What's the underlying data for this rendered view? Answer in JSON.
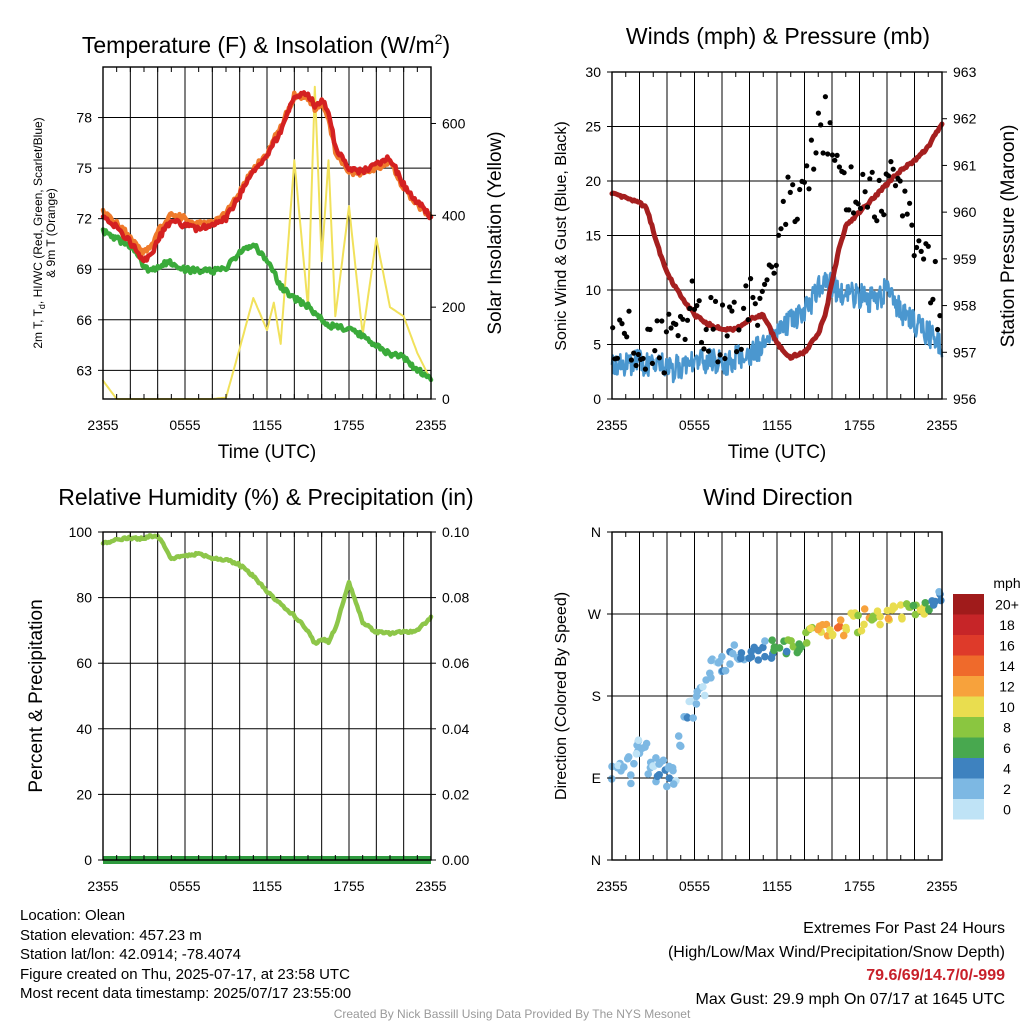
{
  "chart_data": [
    {
      "panel": "temperature",
      "type": "line",
      "title": "Temperature (F) & Insolation (W/m²)",
      "title_parts": {
        "main": "Temperature (F) & Insolation (W/m",
        "sup": "2",
        "end": ")"
      },
      "xlabel": "Time (UTC)",
      "ylabel_left_lines": [
        "2m T, T",
        "d",
        ", HI/WC (Red, Green, Scarlet/Blue)",
        "& 9m T (Orange)"
      ],
      "ylabel_right": "Solar Insolation (Yellow)",
      "x_ticks": [
        "2355",
        "0555",
        "1155",
        "1755",
        "2355"
      ],
      "x_range_hours": [
        0,
        24
      ],
      "ylim_left": [
        61.3,
        81.0
      ],
      "ylim_right": [
        0,
        723
      ],
      "yticks_left": [
        63,
        66,
        69,
        72,
        75,
        78
      ],
      "yticks_right": [
        0,
        200,
        400,
        600
      ],
      "grid": true,
      "x_hours": [
        0,
        1,
        2,
        2.5,
        3,
        3.5,
        4,
        5,
        6,
        7,
        8,
        9,
        10,
        11,
        12,
        12.5,
        13,
        14,
        15,
        15.5,
        16,
        16.5,
        17,
        18,
        19,
        20,
        21,
        22,
        23,
        24
      ],
      "series": [
        {
          "name": "2m T (Red)",
          "color": "#d42121",
          "values": [
            72.3,
            71.5,
            70.6,
            70.0,
            69.6,
            69.8,
            70.8,
            71.9,
            71.6,
            71.4,
            71.6,
            72.0,
            73.4,
            74.8,
            75.6,
            76.5,
            77.2,
            79.3,
            79.4,
            78.7,
            79.1,
            78.3,
            76.3,
            75.0,
            74.8,
            75.2,
            75.6,
            74.0,
            73.0,
            72.1
          ]
        },
        {
          "name": "9m T (Orange)",
          "color": "#ef7a2b",
          "values": [
            72.4,
            71.7,
            70.9,
            70.3,
            70.0,
            70.3,
            71.2,
            72.3,
            72.0,
            71.7,
            71.8,
            72.3,
            73.6,
            75.0,
            75.8,
            76.7,
            77.4,
            79.3,
            79.2,
            78.5,
            78.9,
            78.0,
            76.0,
            74.8,
            74.7,
            75.0,
            75.4,
            73.8,
            72.8,
            72.2
          ]
        },
        {
          "name": "Td (Green)",
          "color": "#3aaa3a",
          "values": [
            71.3,
            70.8,
            70.4,
            69.9,
            69.2,
            68.9,
            69.2,
            69.4,
            69.0,
            68.9,
            68.9,
            69.0,
            70.0,
            70.5,
            69.5,
            68.8,
            68.0,
            67.3,
            66.8,
            66.4,
            66.0,
            65.6,
            65.7,
            65.4,
            65.1,
            64.4,
            64.0,
            63.8,
            63.0,
            62.6
          ]
        },
        {
          "name": "Solar (Yellow)",
          "color": "#f1e15b",
          "axis": "right",
          "values": [
            40,
            0,
            0,
            0,
            0,
            0,
            0,
            0,
            0,
            0,
            0,
            3,
            110,
            220,
            150,
            210,
            120,
            520,
            200,
            680,
            300,
            520,
            180,
            420,
            140,
            350,
            200,
            180,
            100,
            40
          ]
        }
      ]
    },
    {
      "panel": "winds",
      "type": "line+scatter",
      "title": "Winds (mph) & Pressure (mb)",
      "xlabel": "Time (UTC)",
      "ylabel_left": "Sonic Wind & Gust (Blue, Black)",
      "ylabel_right": "Station Pressure (Maroon)",
      "x_ticks": [
        "2355",
        "0555",
        "1155",
        "1755",
        "2355"
      ],
      "ylim_left": [
        0,
        30
      ],
      "ylim_right": [
        956,
        963
      ],
      "yticks_left": [
        0,
        5,
        10,
        15,
        20,
        25,
        30
      ],
      "yticks_right": [
        956,
        957,
        958,
        959,
        960,
        961,
        962,
        963
      ],
      "grid": true,
      "x_hours": [
        0,
        1,
        2,
        2.5,
        3,
        3.5,
        4,
        5,
        6,
        7,
        8,
        9,
        10,
        11,
        12,
        12.5,
        13,
        14,
        15,
        15.5,
        16,
        16.5,
        17,
        18,
        19,
        20,
        21,
        22,
        23,
        24
      ],
      "series": [
        {
          "name": "Sonic Wind (Blue)",
          "color": "#4b97cf",
          "values": [
            3,
            3,
            3.5,
            3,
            3.5,
            3.2,
            2.5,
            3,
            3.5,
            3.5,
            3.2,
            3.8,
            4,
            5,
            6.5,
            7,
            7,
            8,
            10,
            11,
            10.5,
            9.5,
            9.5,
            9.5,
            9,
            10,
            8,
            7,
            6,
            5
          ]
        },
        {
          "name": "Gust (Black)",
          "color": "#000000",
          "values": [
            6,
            5,
            5.5,
            5,
            5.5,
            4.5,
            5,
            7,
            8,
            6.5,
            6,
            7,
            8,
            10,
            14,
            17,
            18,
            21,
            24,
            26,
            23,
            20,
            19,
            18,
            19,
            20,
            18,
            15,
            12,
            8
          ]
        },
        {
          "name": "Station Pressure (Maroon)",
          "color": "#a51f1f",
          "axis": "right",
          "values": [
            960.4,
            960.3,
            960.2,
            960.1,
            959.6,
            959.1,
            958.7,
            958.2,
            957.8,
            957.6,
            957.5,
            957.5,
            957.7,
            957.8,
            957.2,
            957.0,
            956.9,
            957.0,
            957.4,
            957.8,
            958.5,
            959.2,
            959.7,
            960.0,
            960.3,
            960.6,
            960.9,
            961.1,
            961.4,
            961.9
          ]
        }
      ]
    },
    {
      "panel": "humidity",
      "type": "line",
      "title": "Relative Humidity (%) & Precipitation (in)",
      "ylabel_left": "Percent & Precipitation",
      "x_ticks": [
        "2355",
        "0555",
        "1155",
        "1755",
        "2355"
      ],
      "ylim_left": [
        0,
        100
      ],
      "ylim_right": [
        0,
        0.1
      ],
      "yticks_left": [
        0,
        20,
        40,
        60,
        80,
        100
      ],
      "yticks_right": [
        "0.00",
        "0.02",
        "0.04",
        "0.06",
        "0.08",
        "0.10"
      ],
      "grid": true,
      "x_hours": [
        0,
        1,
        2,
        2.5,
        3,
        3.5,
        4,
        5,
        6,
        7,
        8,
        9,
        10,
        11,
        12,
        12.5,
        13,
        14,
        15,
        15.5,
        16,
        16.5,
        17,
        18,
        19,
        20,
        21,
        22,
        23,
        24
      ],
      "series": [
        {
          "name": "Relative Humidity",
          "color": "#8dc649",
          "values": [
            96.5,
            97.5,
            98.3,
            97.9,
            98.2,
            98.7,
            99.0,
            92.0,
            92.5,
            93.5,
            92.0,
            91.5,
            90.0,
            86.5,
            82.0,
            80.0,
            78.0,
            74.5,
            70.0,
            66.0,
            67.5,
            66.5,
            70.5,
            84.5,
            72.5,
            69.5,
            69.0,
            69.5,
            70.0,
            74.0
          ]
        },
        {
          "name": "Precipitation",
          "color": "#2e9a3e",
          "axis": "right",
          "values": [
            0,
            0,
            0,
            0,
            0,
            0,
            0,
            0,
            0,
            0,
            0,
            0,
            0,
            0,
            0,
            0,
            0,
            0,
            0,
            0,
            0,
            0,
            0,
            0,
            0,
            0,
            0,
            0,
            0,
            0
          ]
        }
      ]
    },
    {
      "panel": "direction",
      "type": "scatter",
      "title": "Wind Direction",
      "ylabel_left": "Direction (Colored By Speed)",
      "x_ticks": [
        "2355",
        "0555",
        "1155",
        "1755",
        "2355"
      ],
      "y_ticks": [
        "N",
        "E",
        "S",
        "W",
        "N"
      ],
      "y_degrees": [
        0,
        90,
        180,
        270,
        360
      ],
      "grid": true,
      "legend": {
        "title": "mph",
        "labels": [
          "20+",
          "18",
          "16",
          "14",
          "12",
          "10",
          "8",
          "6",
          "4",
          "2",
          "0"
        ],
        "colors": [
          "#a01b1b",
          "#c62528",
          "#de3a2a",
          "#ef6a2b",
          "#f7a23c",
          "#e9dd4f",
          "#8ac640",
          "#48a84f",
          "#3e82bf",
          "#7db8e3",
          "#bfe3f6"
        ],
        "placement": "right"
      },
      "series": [
        {
          "name": "Direction",
          "x_hours": [
            0.2,
            0.6,
            1.0,
            1.4,
            1.8,
            2.0,
            2.3,
            2.6,
            3.0,
            3.3,
            3.6,
            4.0,
            4.3,
            4.6,
            5.0,
            5.4,
            5.8,
            6.2,
            6.6,
            7.0,
            7.4,
            7.8,
            8.2,
            8.6,
            9.0,
            9.5,
            10,
            10.5,
            11,
            11.5,
            12,
            12.5,
            13,
            13.5,
            14,
            14.5,
            15,
            15.5,
            16,
            16.5,
            17,
            17.5,
            18,
            18.5,
            19,
            19.5,
            20,
            20.5,
            21,
            21.5,
            22,
            22.5,
            23,
            23.5,
            23.9
          ],
          "degrees": [
            100,
            105,
            110,
            95,
            120,
            125,
            130,
            105,
            110,
            95,
            100,
            90,
            98,
            92,
            130,
            150,
            165,
            175,
            190,
            200,
            210,
            215,
            215,
            220,
            225,
            220,
            225,
            228,
            230,
            232,
            235,
            232,
            240,
            238,
            240,
            245,
            248,
            250,
            252,
            258,
            255,
            262,
            260,
            265,
            262,
            265,
            268,
            272,
            275,
            272,
            275,
            278,
            276,
            280,
            285
          ],
          "speeds": [
            3,
            2,
            4,
            2,
            3,
            2,
            3,
            3,
            2,
            4,
            3,
            4,
            3,
            2,
            3,
            4,
            2,
            3,
            2,
            3,
            2,
            3,
            4,
            4,
            3,
            4,
            4,
            5,
            4,
            6,
            7,
            6,
            8,
            7,
            8,
            10,
            12,
            13,
            11,
            14,
            12,
            11,
            10,
            12,
            9,
            11,
            12,
            10,
            11,
            9,
            8,
            11,
            7,
            5,
            4
          ]
        }
      ]
    }
  ],
  "station": {
    "location": "Location: Olean",
    "elevation": "Station elevation: 457.23 m",
    "latlon": "Station lat/lon: 42.0914; -78.4074",
    "created": "Figure created on Thu, 2025-07-17, at 23:58 UTC",
    "recent": "Most recent data timestamp: 2025/07/17 23:55:00"
  },
  "extremes": {
    "heading": "Extremes For Past 24 Hours",
    "subheading": "(High/Low/Max Wind/Precipitation/Snow Depth)",
    "values": "79.6/69/14.7/0/-999",
    "max_gust": "Max Gust: 29.9 mph On 07/17 at 1645 UTC"
  },
  "credit": "Created By Nick Bassill Using Data Provided By The NYS Mesonet"
}
